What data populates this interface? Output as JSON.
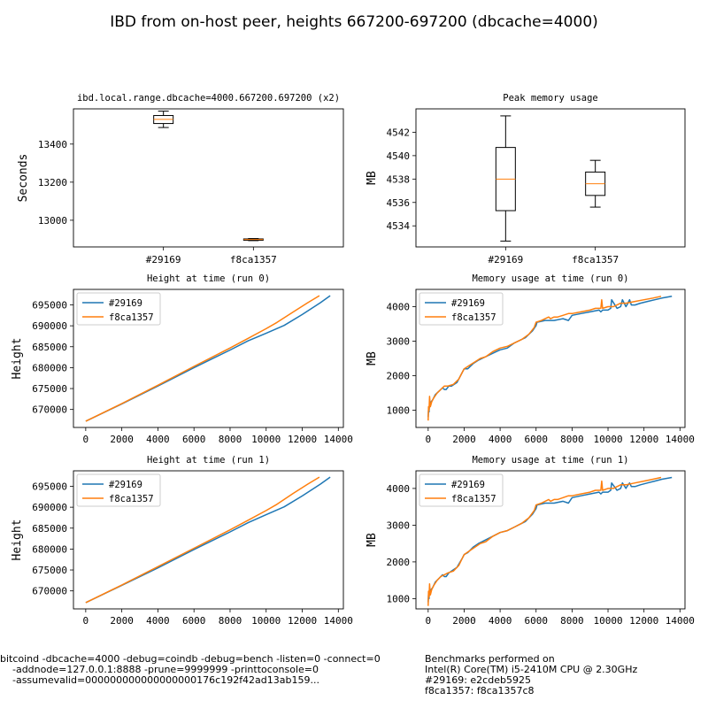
{
  "figure": {
    "suptitle": "IBD from on-host peer, heights 667200-697200 (dbcache=4000)"
  },
  "colors": {
    "series1": "#1f77b4",
    "series2": "#ff7f0e",
    "median": "#ff7f0e"
  },
  "chart_data": [
    {
      "type": "box",
      "title": "ibd.local.range.dbcache=4000.667200.697200 (x2)",
      "ylabel": "Seconds",
      "categories": [
        "#29169",
        "f8ca1357"
      ],
      "yticks": [
        13000,
        13200,
        13400
      ],
      "ylim": [
        12860,
        13585
      ],
      "boxes": [
        {
          "name": "#29169",
          "whisker_low": 13487,
          "q1": 13508,
          "median": 13530,
          "q3": 13550,
          "whisker_high": 13573
        },
        {
          "name": "f8ca1357",
          "whisker_low": 12893,
          "q1": 12895,
          "median": 12899,
          "q3": 12902,
          "whisker_high": 12904
        }
      ]
    },
    {
      "type": "box",
      "title": "Peak memory usage",
      "ylabel": "MB",
      "categories": [
        "#29169",
        "f8ca1357"
      ],
      "yticks": [
        4534,
        4536,
        4538,
        4540,
        4542
      ],
      "ylim": [
        4532.2,
        4544.0
      ],
      "boxes": [
        {
          "name": "#29169",
          "whisker_low": 4532.7,
          "q1": 4535.3,
          "median": 4538.0,
          "q3": 4540.7,
          "whisker_high": 4543.4
        },
        {
          "name": "f8ca1357",
          "whisker_low": 4535.6,
          "q1": 4536.6,
          "median": 4537.6,
          "q3": 4538.6,
          "whisker_high": 4539.6
        }
      ]
    },
    {
      "type": "line",
      "title": "Height at time (run 0)",
      "ylabel": "Height",
      "xticks": [
        0,
        2000,
        4000,
        6000,
        8000,
        10000,
        12000,
        14000
      ],
      "yticks": [
        670000,
        675000,
        680000,
        685000,
        690000,
        695000
      ],
      "xlim": [
        -680,
        14280
      ],
      "ylim": [
        665700,
        698700
      ],
      "legend": "top-left",
      "series": [
        {
          "name": "#29169",
          "x": [
            0,
            2000,
            4000,
            6000,
            8000,
            9000,
            10000,
            11000,
            12000,
            13000,
            13550
          ],
          "y": [
            667200,
            671300,
            675600,
            680000,
            684200,
            686400,
            688200,
            690100,
            692700,
            695500,
            697200
          ]
        },
        {
          "name": "f8ca1357",
          "x": [
            0,
            2000,
            4000,
            6000,
            8000,
            9000,
            10000,
            10600,
            11500,
            12300,
            12950
          ],
          "y": [
            667200,
            671400,
            675800,
            680300,
            684700,
            687000,
            689300,
            690800,
            693300,
            695500,
            697200
          ]
        }
      ]
    },
    {
      "type": "line",
      "title": "Memory usage at time (run 0)",
      "ylabel": "MB",
      "xticks": [
        0,
        2000,
        4000,
        6000,
        8000,
        10000,
        12000,
        14000
      ],
      "yticks": [
        1000,
        2000,
        3000,
        4000
      ],
      "xlim": [
        -680,
        14280
      ],
      "ylim": [
        500,
        4500
      ],
      "legend": "top-left",
      "series": [
        {
          "name": "#29169",
          "x": [
            0,
            20,
            50,
            80,
            120,
            170,
            250,
            400,
            600,
            800,
            900,
            1000,
            1150,
            1300,
            1600,
            1900,
            2000,
            2200,
            2500,
            2800,
            3000,
            3400,
            3800,
            4000,
            4400,
            4800,
            5000,
            5400,
            5800,
            6000,
            6050,
            6500,
            7000,
            7500,
            7800,
            8000,
            8500,
            9000,
            9500,
            9600,
            9700,
            10000,
            10150,
            10200,
            10500,
            10700,
            10800,
            11000,
            11050,
            11200,
            11300,
            11500,
            11800,
            12200,
            12600,
            13000,
            13550
          ],
          "y": [
            800,
            1000,
            950,
            1200,
            1150,
            1250,
            1300,
            1450,
            1550,
            1650,
            1600,
            1600,
            1700,
            1700,
            1800,
            2100,
            2200,
            2200,
            2350,
            2450,
            2500,
            2600,
            2700,
            2750,
            2800,
            2950,
            3000,
            3100,
            3300,
            3450,
            3550,
            3600,
            3600,
            3650,
            3600,
            3750,
            3800,
            3850,
            3900,
            3850,
            3900,
            3900,
            3950,
            4200,
            3950,
            4000,
            4200,
            4000,
            4050,
            4200,
            4050,
            4050,
            4100,
            4150,
            4200,
            4250,
            4300
          ]
        },
        {
          "name": "f8ca1357",
          "x": [
            0,
            20,
            50,
            80,
            120,
            200,
            300,
            500,
            700,
            900,
            1100,
            1400,
            1700,
            1900,
            2000,
            2300,
            2600,
            2900,
            3200,
            3600,
            4000,
            4400,
            4800,
            5200,
            5600,
            5900,
            6000,
            6300,
            6700,
            6800,
            7000,
            7200,
            7500,
            7800,
            8000,
            8500,
            9000,
            9300,
            9600,
            9650,
            9700,
            10000,
            10300,
            10500,
            10700,
            11000,
            11500,
            12000,
            12500,
            12950
          ],
          "y": [
            700,
            1100,
            1000,
            1400,
            1100,
            1250,
            1350,
            1500,
            1600,
            1700,
            1700,
            1750,
            1900,
            2100,
            2200,
            2300,
            2400,
            2500,
            2550,
            2700,
            2800,
            2850,
            2950,
            3050,
            3200,
            3400,
            3550,
            3600,
            3700,
            3650,
            3700,
            3700,
            3750,
            3800,
            3800,
            3850,
            3900,
            3950,
            3950,
            4200,
            3950,
            4000,
            4000,
            4050,
            4100,
            4100,
            4150,
            4200,
            4250,
            4300
          ]
        }
      ]
    },
    {
      "type": "line",
      "title": "Height at time (run 1)",
      "ylabel": "Height",
      "xticks": [
        0,
        2000,
        4000,
        6000,
        8000,
        10000,
        12000,
        14000
      ],
      "yticks": [
        670000,
        675000,
        680000,
        685000,
        690000,
        695000
      ],
      "xlim": [
        -680,
        14280
      ],
      "ylim": [
        665700,
        698700
      ],
      "legend": "top-left",
      "series": [
        {
          "name": "#29169",
          "x": [
            0,
            2000,
            4000,
            6000,
            8000,
            9000,
            10000,
            11000,
            12000,
            13000,
            13550
          ],
          "y": [
            667200,
            671300,
            675500,
            679900,
            684100,
            686300,
            688200,
            690100,
            692700,
            695500,
            697200
          ]
        },
        {
          "name": "f8ca1357",
          "x": [
            0,
            2000,
            4000,
            6000,
            8000,
            9000,
            10000,
            10600,
            11500,
            12300,
            12950
          ],
          "y": [
            667200,
            671400,
            675800,
            680200,
            684600,
            686900,
            689200,
            690700,
            693300,
            695500,
            697200
          ]
        }
      ]
    },
    {
      "type": "line",
      "title": "Memory usage at time (run 1)",
      "ylabel": "MB",
      "xticks": [
        0,
        2000,
        4000,
        6000,
        8000,
        10000,
        12000,
        14000
      ],
      "yticks": [
        1000,
        2000,
        3000,
        4000
      ],
      "xlim": [
        -680,
        14280
      ],
      "ylim": [
        720,
        4480
      ],
      "legend": "top-left",
      "series": [
        {
          "name": "#29169",
          "x": [
            0,
            20,
            50,
            80,
            120,
            170,
            250,
            400,
            600,
            800,
            900,
            1000,
            1150,
            1300,
            1600,
            1900,
            2000,
            2200,
            2500,
            2800,
            3000,
            3400,
            3800,
            4000,
            4400,
            4800,
            5000,
            5400,
            5800,
            6000,
            6050,
            6500,
            7000,
            7500,
            7800,
            8000,
            8500,
            9000,
            9500,
            9600,
            9700,
            10000,
            10150,
            10200,
            10500,
            10700,
            10800,
            11000,
            11050,
            11200,
            11300,
            11500,
            11800,
            12200,
            12600,
            13000,
            13550
          ],
          "y": [
            900,
            1100,
            1000,
            1250,
            1150,
            1250,
            1300,
            1450,
            1550,
            1650,
            1600,
            1600,
            1700,
            1750,
            1850,
            2100,
            2200,
            2250,
            2400,
            2500,
            2550,
            2650,
            2750,
            2800,
            2850,
            2950,
            3000,
            3100,
            3300,
            3450,
            3550,
            3600,
            3600,
            3650,
            3600,
            3750,
            3800,
            3850,
            3900,
            3850,
            3900,
            3900,
            3950,
            4150,
            3950,
            4000,
            4150,
            4000,
            4050,
            4150,
            4050,
            4050,
            4100,
            4150,
            4200,
            4250,
            4300
          ]
        },
        {
          "name": "f8ca1357",
          "x": [
            0,
            20,
            50,
            80,
            120,
            200,
            300,
            500,
            700,
            900,
            1100,
            1400,
            1700,
            1900,
            2000,
            2300,
            2600,
            2900,
            3200,
            3600,
            4000,
            4400,
            4800,
            5200,
            5600,
            5900,
            6000,
            6300,
            6700,
            6800,
            7000,
            7200,
            7500,
            7800,
            8000,
            8500,
            9000,
            9300,
            9600,
            9650,
            9700,
            10000,
            10300,
            10500,
            10700,
            11000,
            11500,
            12000,
            12500,
            12950
          ],
          "y": [
            800,
            1200,
            1050,
            1400,
            1100,
            1250,
            1350,
            1500,
            1600,
            1650,
            1700,
            1750,
            1900,
            2100,
            2200,
            2300,
            2400,
            2500,
            2550,
            2700,
            2800,
            2850,
            2950,
            3050,
            3200,
            3400,
            3550,
            3600,
            3700,
            3650,
            3700,
            3700,
            3750,
            3800,
            3800,
            3850,
            3900,
            3950,
            3950,
            4200,
            3950,
            4000,
            4000,
            4050,
            4100,
            4100,
            4150,
            4200,
            4250,
            4300
          ]
        }
      ]
    }
  ],
  "footer": {
    "command": "bitcoind -dbcache=4000 -debug=coindb -debug=bench -listen=0 -connect=0\n    -addnode=127.0.0.1:8888 -prune=9999999 -printtoconsole=0\n    -assumevalid=000000000000000000176c192f42ad13ab159...",
    "benchmark_info": "Benchmarks performed on\nIntel(R) Core(TM) i5-2410M CPU @ 2.30GHz\n#29169: e2cdeb5925\nf8ca1357: f8ca1357c8"
  }
}
